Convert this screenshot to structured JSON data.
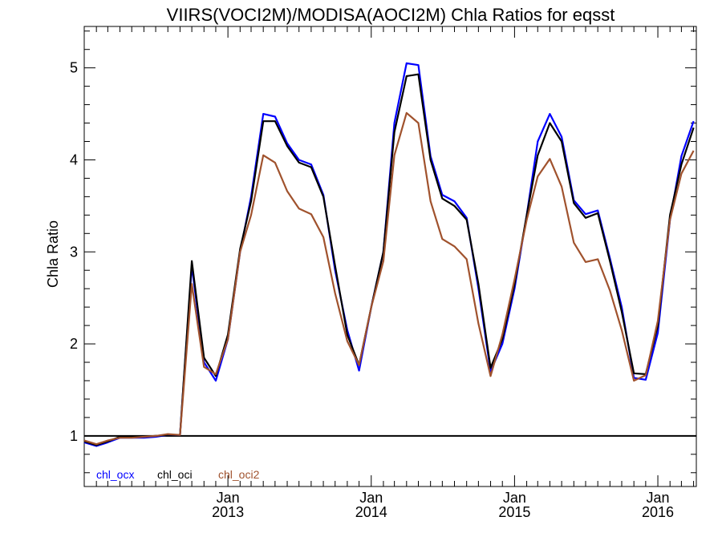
{
  "chart_data": {
    "type": "line",
    "title": "VIIRS(VOCI2M)/MODISA(AOCI2M)  Chla Ratios for eqsst",
    "xlabel": "",
    "ylabel": "Chla Ratio",
    "xlim": [
      "2012-01-01",
      "2016-04-08"
    ],
    "ylim": [
      0.45,
      5.45
    ],
    "y_ticks": [
      1,
      2,
      3,
      4,
      5
    ],
    "x_ticks": [
      {
        "date": "2013-01-01",
        "month": "Jan",
        "year": "2013"
      },
      {
        "date": "2014-01-01",
        "month": "Jan",
        "year": "2014"
      },
      {
        "date": "2015-01-01",
        "month": "Jan",
        "year": "2015"
      },
      {
        "date": "2016-01-01",
        "month": "Jan",
        "year": "2016"
      }
    ],
    "reference_line": {
      "y": 1,
      "color": "#000000"
    },
    "grid": false,
    "legend": "bottom-left",
    "x": [
      "2012-01-01",
      "2012-02-01",
      "2012-03-01",
      "2012-04-01",
      "2012-05-01",
      "2012-06-01",
      "2012-07-01",
      "2012-08-01",
      "2012-09-01",
      "2012-10-01",
      "2012-11-01",
      "2012-12-01",
      "2013-01-01",
      "2013-02-01",
      "2013-03-01",
      "2013-04-01",
      "2013-05-01",
      "2013-06-01",
      "2013-07-01",
      "2013-08-01",
      "2013-09-01",
      "2013-10-01",
      "2013-11-01",
      "2013-12-01",
      "2014-01-01",
      "2014-02-01",
      "2014-03-01",
      "2014-04-01",
      "2014-05-01",
      "2014-06-01",
      "2014-07-01",
      "2014-08-01",
      "2014-09-01",
      "2014-10-01",
      "2014-11-01",
      "2014-12-01",
      "2015-01-01",
      "2015-02-01",
      "2015-03-01",
      "2015-04-01",
      "2015-05-01",
      "2015-06-01",
      "2015-07-01",
      "2015-08-01",
      "2015-09-01",
      "2015-10-01",
      "2015-11-01",
      "2015-12-01",
      "2016-01-01",
      "2016-02-01",
      "2016-03-01",
      "2016-04-01"
    ],
    "series": [
      {
        "name": "chl_ocx",
        "color": "#0000ff",
        "values": [
          0.93,
          0.89,
          0.93,
          0.98,
          0.98,
          0.98,
          0.99,
          1.01,
          1.01,
          2.85,
          1.8,
          1.6,
          2.05,
          3.0,
          3.6,
          4.5,
          4.47,
          4.18,
          4.0,
          3.95,
          3.62,
          2.8,
          2.15,
          1.71,
          2.4,
          3.0,
          4.4,
          5.05,
          5.03,
          4.04,
          3.62,
          3.55,
          3.37,
          2.6,
          1.7,
          2.0,
          2.6,
          3.4,
          4.2,
          4.5,
          4.25,
          3.56,
          3.41,
          3.45,
          2.93,
          2.4,
          1.63,
          1.61,
          2.12,
          3.35,
          4.04,
          4.42
        ]
      },
      {
        "name": "chl_oci",
        "color": "#000000",
        "values": [
          0.94,
          0.9,
          0.94,
          0.99,
          0.99,
          0.99,
          1.0,
          1.01,
          1.01,
          2.9,
          1.85,
          1.65,
          2.1,
          3.03,
          3.55,
          4.42,
          4.42,
          4.15,
          3.97,
          3.92,
          3.6,
          2.85,
          2.1,
          1.77,
          2.4,
          3.0,
          4.3,
          4.91,
          4.93,
          4.0,
          3.58,
          3.5,
          3.35,
          2.65,
          1.74,
          2.05,
          2.65,
          3.4,
          4.05,
          4.4,
          4.2,
          3.53,
          3.37,
          3.42,
          2.9,
          2.35,
          1.68,
          1.67,
          2.2,
          3.4,
          3.95,
          4.35
        ]
      },
      {
        "name": "chl_oci2",
        "color": "#a0522d",
        "values": [
          0.95,
          0.91,
          0.95,
          0.98,
          0.98,
          0.99,
          1.0,
          1.02,
          1.01,
          2.65,
          1.75,
          1.67,
          2.05,
          3.0,
          3.4,
          4.05,
          3.97,
          3.66,
          3.47,
          3.41,
          3.16,
          2.55,
          2.03,
          1.77,
          2.4,
          2.9,
          4.05,
          4.51,
          4.4,
          3.55,
          3.14,
          3.06,
          2.92,
          2.22,
          1.65,
          2.1,
          2.7,
          3.35,
          3.82,
          4.01,
          3.71,
          3.1,
          2.89,
          2.92,
          2.58,
          2.15,
          1.6,
          1.66,
          2.25,
          3.35,
          3.85,
          4.1
        ]
      }
    ]
  }
}
